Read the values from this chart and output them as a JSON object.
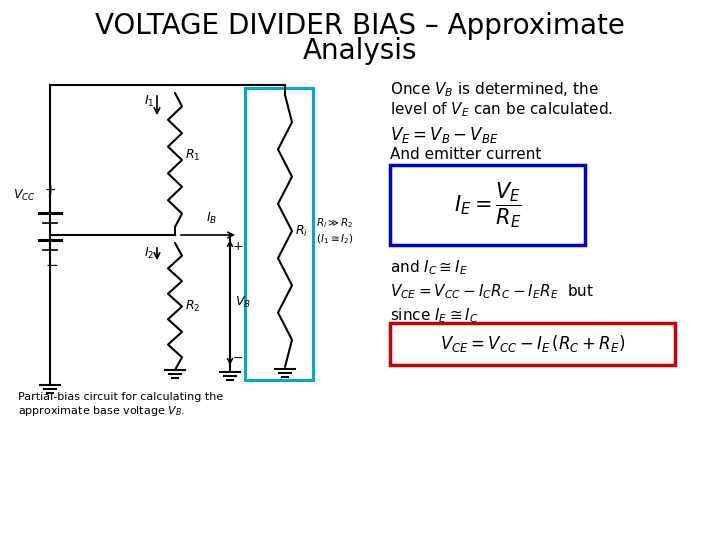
{
  "title_line1": "VOLTAGE DIVIDER BIAS – Approximate",
  "title_line2": "Analysis",
  "title_fontsize": 20,
  "body_fontsize": 10,
  "formula_fontsize": 10,
  "bg_color": "#ffffff",
  "text_color": "#000000",
  "ie_box_color": "#0000cc",
  "vce_box_color": "#cc0000",
  "circuit_box_color": "#00aacc",
  "caption": "Partial-bias circuit for calculating the\napproximate base voltage $V_B$.",
  "text_once": "Once $V_B$ is determined, the",
  "text_level": "level of $V_E$ can be calculated.",
  "eq_ve": "$V_E = V_B - V_{BE}$",
  "text_emitter": "And emitter current",
  "text_and_ic": "and $I_C \\cong I_E$",
  "text_vce": "$V_{CE} = V_{CC} -I_C R_C -I_E R_E$  but",
  "text_since": "since $I_E \\cong I_C$",
  "text_final": "$V_{CE}= V_{CC} - I_E\\,(R_C + R_E)$"
}
